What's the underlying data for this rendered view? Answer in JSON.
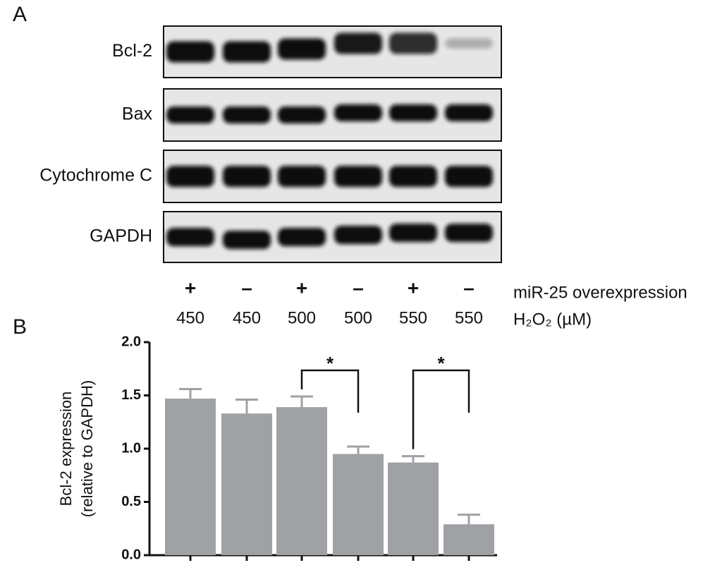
{
  "panel_a": {
    "label": "A",
    "rows": [
      "Bcl-2",
      "Bax",
      "Cytochrome C",
      "GAPDH"
    ],
    "treatment_label": "miR-25 overexpression",
    "dose_label": "H₂O₂ (µM)",
    "lanes": [
      {
        "mir25": "+",
        "dose": 450
      },
      {
        "mir25": "–",
        "dose": 450
      },
      {
        "mir25": "+",
        "dose": 500
      },
      {
        "mir25": "–",
        "dose": 500
      },
      {
        "mir25": "+",
        "dose": 550
      },
      {
        "mir25": "–",
        "dose": 550
      }
    ]
  },
  "panel_b": {
    "label": "B"
  },
  "chart_data": {
    "type": "bar",
    "y_label": [
      "Bcl-2 expression",
      "(relative to GAPDH)"
    ],
    "categories": [
      null,
      null,
      null,
      null,
      null,
      null
    ],
    "values": [
      1.47,
      1.33,
      1.39,
      0.95,
      0.87,
      0.29
    ],
    "errors": [
      0.09,
      0.13,
      0.1,
      0.07,
      0.06,
      0.09
    ],
    "color": "#a0a1a5",
    "ylim": [
      0,
      2
    ],
    "yticks": [
      {
        "value": 0,
        "label": "0.0"
      },
      {
        "value": 0.5,
        "label": "0.5"
      },
      {
        "value": 1,
        "label": "1.0"
      },
      {
        "value": 1.5,
        "label": "1.5"
      },
      {
        "value": 2,
        "label": "2.0"
      }
    ],
    "annotations": [
      {
        "text": "*",
        "bars": [
          2,
          3
        ]
      },
      {
        "text": "*",
        "bars": [
          4,
          5
        ]
      }
    ]
  }
}
